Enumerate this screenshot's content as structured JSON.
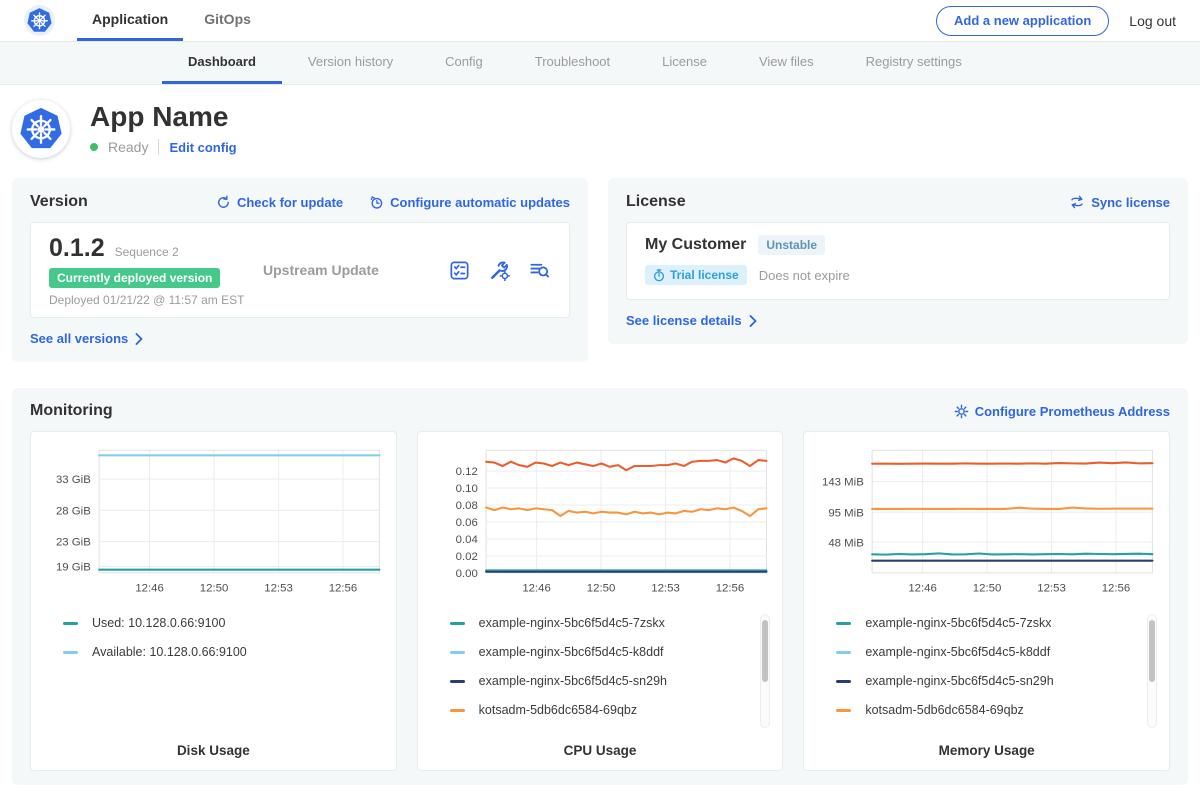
{
  "topbar": {
    "nav": [
      {
        "label": "Application",
        "active": true
      },
      {
        "label": "GitOps",
        "active": false
      }
    ],
    "add_application_label": "Add a new application",
    "logout_label": "Log out"
  },
  "subnav": {
    "items": [
      {
        "label": "Dashboard",
        "active": true
      },
      {
        "label": "Version history",
        "active": false
      },
      {
        "label": "Config",
        "active": false
      },
      {
        "label": "Troubleshoot",
        "active": false
      },
      {
        "label": "License",
        "active": false
      },
      {
        "label": "View files",
        "active": false
      },
      {
        "label": "Registry settings",
        "active": false
      }
    ]
  },
  "app": {
    "name": "App Name",
    "status": "Ready",
    "edit_config_label": "Edit config",
    "icon": "kubernetes-logo"
  },
  "version": {
    "title": "Version",
    "check_update_label": "Check for update",
    "auto_update_label": "Configure automatic updates",
    "number": "0.1.2",
    "sequence": "Sequence 2",
    "deployed_badge": "Currently deployed version",
    "deployed_text": "Deployed 01/21/22 @ 11:57 am EST",
    "source": "Upstream Update",
    "see_all_label": "See all versions",
    "action_icons": [
      "preflight-checks-icon",
      "wrench-gear-config-icon",
      "deploy-logs-icon"
    ]
  },
  "license": {
    "title": "License",
    "sync_label": "Sync license",
    "customer": "My Customer",
    "channel_badge": "Unstable",
    "type_badge": "Trial license",
    "expiry": "Does not expire",
    "details_label": "See license details"
  },
  "monitoring": {
    "title": "Monitoring",
    "configure_label": "Configure Prometheus Address"
  },
  "colors": {
    "accent_blue": "#3066e0",
    "kubernetes_blue": "#326ce5",
    "deployed_badge_green": "#44c98b",
    "ready_green": "#44bb66",
    "series_teal": "#26a0a5",
    "series_light_blue": "#7fd0e8",
    "series_navy": "#293e75",
    "series_orange": "#f8953d",
    "series_red_orange": "#ea5e2e"
  },
  "chart_data": [
    {
      "type": "line",
      "title": "Disk Usage",
      "ylim": [
        18,
        37.6
      ],
      "yticks": [
        {
          "v": 19,
          "label": "19 GiB"
        },
        {
          "v": 23,
          "label": "23 GiB"
        },
        {
          "v": 28,
          "label": "28 GiB"
        },
        {
          "v": 33,
          "label": "33 GiB"
        }
      ],
      "xticks": [
        {
          "pos": 0.18,
          "label": "12:46"
        },
        {
          "pos": 0.41,
          "label": "12:50"
        },
        {
          "pos": 0.64,
          "label": "12:53"
        },
        {
          "pos": 0.87,
          "label": "12:56"
        }
      ],
      "series": [
        {
          "name": "Available: 10.128.0.66:9100",
          "color": "#7fd0e8",
          "values": [
            36.8,
            36.8
          ]
        },
        {
          "name": "Used: 10.128.0.66:9100",
          "color": "#26a0a5",
          "values": [
            18.5,
            18.5
          ]
        }
      ],
      "legend": [
        {
          "label": "Used: 10.128.0.66:9100",
          "color": "#26a0a5"
        },
        {
          "label": "Available: 10.128.0.66:9100",
          "color": "#7fd0e8"
        }
      ],
      "scrollbar": false
    },
    {
      "type": "line",
      "title": "CPU Usage",
      "ylim": [
        0,
        0.1445
      ],
      "yticks": [
        {
          "v": 0,
          "label": "0.00"
        },
        {
          "v": 0.02,
          "label": "0.02"
        },
        {
          "v": 0.04,
          "label": "0.04"
        },
        {
          "v": 0.06,
          "label": "0.06"
        },
        {
          "v": 0.08,
          "label": "0.08"
        },
        {
          "v": 0.1,
          "label": "0.10"
        },
        {
          "v": 0.12,
          "label": "0.12"
        }
      ],
      "xticks": [
        {
          "pos": 0.18,
          "label": "12:46"
        },
        {
          "pos": 0.41,
          "label": "12:50"
        },
        {
          "pos": 0.64,
          "label": "12:53"
        },
        {
          "pos": 0.87,
          "label": "12:56"
        }
      ],
      "series": [
        {
          "name": "",
          "color": "#ea5e2e",
          "values": [
            0.131,
            0.13,
            0.126,
            0.131,
            0.127,
            0.125,
            0.13,
            0.129,
            0.126,
            0.13,
            0.127,
            0.13,
            0.128,
            0.126,
            0.129,
            0.125,
            0.127,
            0.121,
            0.126,
            0.126,
            0.126,
            0.127,
            0.127,
            0.129,
            0.126,
            0.131,
            0.132,
            0.132,
            0.133,
            0.13,
            0.135,
            0.132,
            0.126,
            0.133,
            0.132
          ]
        },
        {
          "name": "kotsadm-5db6dc6584-69qbz",
          "color": "#f8953d",
          "values": [
            0.077,
            0.074,
            0.077,
            0.075,
            0.076,
            0.074,
            0.076,
            0.075,
            0.074,
            0.067,
            0.073,
            0.071,
            0.072,
            0.07,
            0.072,
            0.071,
            0.071,
            0.069,
            0.072,
            0.07,
            0.071,
            0.069,
            0.071,
            0.07,
            0.073,
            0.072,
            0.075,
            0.074,
            0.076,
            0.075,
            0.077,
            0.073,
            0.067,
            0.075,
            0.076
          ]
        },
        {
          "name": "example-nginx-5bc6f5d4c5-k8ddf",
          "color": "#7fd0e8",
          "values": [
            0.0015,
            0.0015
          ]
        },
        {
          "name": "example-nginx-5bc6f5d4c5-7zskx",
          "color": "#26a0a5",
          "values": [
            0.0028,
            0.0028
          ]
        },
        {
          "name": "example-nginx-5bc6f5d4c5-sn29h",
          "color": "#293e75",
          "values": [
            0.0012,
            0.0012
          ]
        }
      ],
      "legend": [
        {
          "label": "example-nginx-5bc6f5d4c5-7zskx",
          "color": "#26a0a5"
        },
        {
          "label": "example-nginx-5bc6f5d4c5-k8ddf",
          "color": "#7fd0e8"
        },
        {
          "label": "example-nginx-5bc6f5d4c5-sn29h",
          "color": "#293e75"
        },
        {
          "label": "kotsadm-5db6dc6584-69qbz",
          "color": "#f8953d"
        }
      ],
      "scrollbar": true
    },
    {
      "type": "line",
      "title": "Memory Usage",
      "ylim": [
        0,
        192
      ],
      "yticks": [
        {
          "v": 48,
          "label": "48 MiB"
        },
        {
          "v": 95,
          "label": "95 MiB"
        },
        {
          "v": 143,
          "label": "143 MiB"
        }
      ],
      "xticks": [
        {
          "pos": 0.18,
          "label": "12:46"
        },
        {
          "pos": 0.41,
          "label": "12:50"
        },
        {
          "pos": 0.64,
          "label": "12:53"
        },
        {
          "pos": 0.87,
          "label": "12:56"
        }
      ],
      "series": [
        {
          "name": "",
          "color": "#ea5e2e",
          "values": [
            171,
            171,
            170.8,
            171,
            171.2,
            171,
            171,
            171.5,
            171,
            171,
            171.3,
            171,
            171.5,
            171,
            172,
            171.5,
            171.2,
            172.8,
            171.8,
            173,
            171.5,
            171.8
          ]
        },
        {
          "name": "kotsadm-5db6dc6584-69qbz",
          "color": "#f8953d",
          "values": [
            100,
            100,
            100,
            100.3,
            100,
            100,
            100,
            100.4,
            100,
            100,
            100,
            102,
            100.6,
            100,
            100,
            102.2,
            100.8,
            100.4,
            100.6,
            100.5,
            100.6,
            100.5
          ]
        },
        {
          "name": "example-nginx-5bc6f5d4c5-7zskx",
          "color": "#26a0a5",
          "values": [
            29,
            28.5,
            29.5,
            28.8,
            29.2,
            30.5,
            28.8,
            29,
            30.2,
            28.8,
            29,
            29.3,
            28.8,
            29.1,
            29.4,
            28.9,
            30,
            29.5,
            29.1,
            29.6,
            30,
            29.2
          ]
        },
        {
          "name": "example-nginx-5bc6f5d4c5-sn29h",
          "color": "#293e75",
          "values": [
            19,
            19
          ]
        }
      ],
      "legend": [
        {
          "label": "example-nginx-5bc6f5d4c5-7zskx",
          "color": "#26a0a5"
        },
        {
          "label": "example-nginx-5bc6f5d4c5-k8ddf",
          "color": "#7fd0e8"
        },
        {
          "label": "example-nginx-5bc6f5d4c5-sn29h",
          "color": "#293e75"
        },
        {
          "label": "kotsadm-5db6dc6584-69qbz",
          "color": "#f8953d"
        }
      ],
      "scrollbar": true
    }
  ]
}
